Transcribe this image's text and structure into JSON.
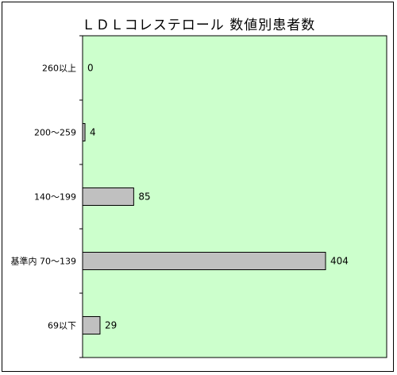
{
  "chart_data": {
    "type": "bar",
    "orientation": "horizontal",
    "title": "ＬＤＬコレステロール 数値別患者数",
    "categories": [
      "260以上",
      "200～259",
      "140～199",
      "基準内 70～139",
      "69以下"
    ],
    "values": [
      0,
      4,
      85,
      404,
      29
    ],
    "xlim": [
      0,
      440
    ],
    "grid": false,
    "legend": "none",
    "colors": {
      "plot_background": "#ccffcc",
      "bar_fill": "#c0c0c0",
      "bar_stroke": "#000000"
    }
  }
}
